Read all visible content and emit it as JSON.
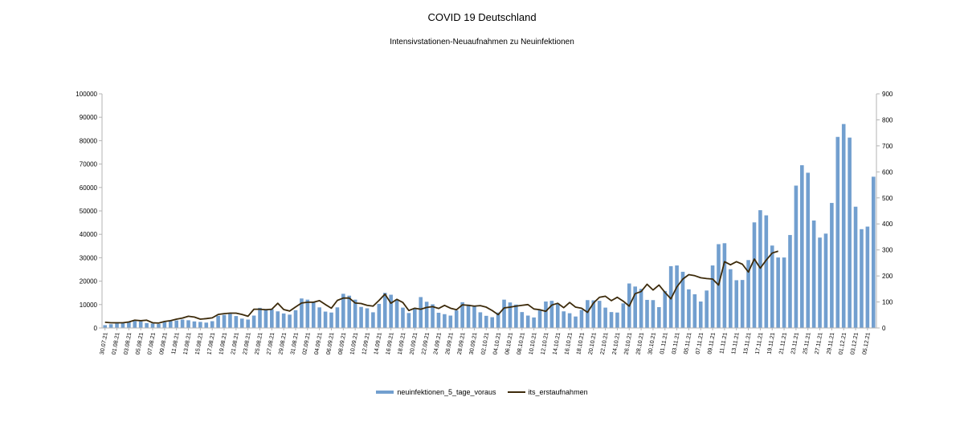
{
  "chart_data": {
    "type": "bar",
    "title": "COVID 19 Deutschland",
    "subtitle": "Intensivstationen-Neuaufnahmen zu Neuinfektionen",
    "xlabel": "",
    "ylabel": "",
    "ylim": [
      0,
      100000
    ],
    "y2lim": [
      0,
      900
    ],
    "yticks": [
      0,
      10000,
      20000,
      30000,
      40000,
      50000,
      60000,
      70000,
      80000,
      90000,
      100000
    ],
    "y2ticks": [
      0,
      100,
      200,
      300,
      400,
      500,
      600,
      700,
      800,
      900
    ],
    "grid": false,
    "legend_position": "bottom",
    "x_tick_labels": [
      "30.07.21",
      "01.08.21",
      "03.08.21",
      "05.08.21",
      "07.08.21",
      "09.08.21",
      "11.08.21",
      "13.08.21",
      "15.08.21",
      "17.08.21",
      "19.08.21",
      "21.08.21",
      "23.08.21",
      "25.08.21",
      "27.08.21",
      "29.08.21",
      "31.08.21",
      "02.09.21",
      "04.09.21",
      "06.09.21",
      "08.09.21",
      "10.09.21",
      "12.09.21",
      "14.09.21",
      "16.09.21",
      "18.09.21",
      "20.09.21",
      "22.09.21",
      "24.09.21",
      "26.09.21",
      "28.09.21",
      "30.09.21",
      "02.10.21",
      "04.10.21",
      "06.10.21",
      "08.10.21",
      "10.10.21",
      "12.10.21",
      "14.10.21",
      "16.10.21",
      "18.10.21",
      "20.10.21",
      "22.10.21",
      "24.10.21",
      "26.10.21",
      "28.10.21",
      "30.10.21",
      "01.11.21",
      "03.11.21",
      "05.11.21",
      "07.11.21",
      "09.11.21",
      "11.11.21",
      "13.11.21",
      "15.11.21",
      "17.11.21",
      "19.11.21",
      "21.11.21",
      "23.11.21",
      "25.11.21",
      "27.11.21",
      "29.11.21",
      "01.12.21",
      "03.12.21",
      "05.12.21"
    ],
    "x_start": "30.07.21",
    "series": [
      {
        "name": "neuinfektionen_5_tage_voraus",
        "kind": "bar",
        "axis": "left",
        "color": "#729fcf",
        "values": [
          1200,
          1600,
          2000,
          2300,
          2700,
          3000,
          2800,
          2100,
          1900,
          1700,
          2500,
          2900,
          3200,
          3600,
          3300,
          2800,
          2600,
          2300,
          2900,
          5200,
          5600,
          6000,
          5100,
          4000,
          3600,
          5300,
          8600,
          8100,
          8000,
          7100,
          6200,
          5700,
          7600,
          12600,
          12100,
          11200,
          8800,
          7000,
          6600,
          8800,
          14600,
          13800,
          12100,
          9000,
          8400,
          6700,
          10300,
          15000,
          14200,
          12200,
          8700,
          6400,
          8400,
          13200,
          11200,
          10100,
          6500,
          5900,
          5300,
          7500,
          11000,
          10000,
          9500,
          6700,
          5200,
          4600,
          6600,
          12100,
          10900,
          10000,
          6800,
          5300,
          4500,
          7800,
          11300,
          11600,
          10500,
          7100,
          6300,
          4900,
          7700,
          11900,
          11800,
          11600,
          8700,
          6800,
          6600,
          10500,
          19000,
          17700,
          16700,
          12000,
          11900,
          8900,
          15800,
          26400,
          26700,
          24000,
          16500,
          14400,
          11300,
          16000,
          26700,
          35800,
          36200,
          25100,
          20400,
          20500,
          29000,
          45100,
          50300,
          48100,
          35200,
          30100,
          30100,
          39700,
          60800,
          69500,
          66300,
          45900,
          38600,
          40300,
          53400,
          81600,
          87100,
          81300,
          51800,
          42200,
          43300,
          64600
        ]
      },
      {
        "name": "its_erstaufnahmen",
        "kind": "line",
        "axis": "right",
        "color": "#3d2b0b",
        "values": [
          22,
          20,
          20,
          20,
          23,
          30,
          28,
          30,
          20,
          19,
          25,
          28,
          34,
          38,
          45,
          42,
          34,
          36,
          39,
          52,
          55,
          57,
          57,
          52,
          45,
          72,
          72,
          70,
          72,
          95,
          71,
          65,
          81,
          96,
          99,
          99,
          105,
          90,
          76,
          106,
          115,
          115,
          96,
          94,
          87,
          84,
          106,
          130,
          95,
          110,
          98,
          67,
          76,
          72,
          79,
          82,
          75,
          87,
          76,
          70,
          89,
          87,
          84,
          86,
          80,
          67,
          51,
          77,
          80,
          84,
          87,
          90,
          73,
          70,
          64,
          88,
          95,
          78,
          98,
          80,
          76,
          60,
          96,
          118,
          122,
          105,
          118,
          103,
          84,
          132,
          140,
          168,
          146,
          165,
          137,
          112,
          158,
          188,
          205,
          201,
          193,
          190,
          188,
          165,
          255,
          243,
          255,
          245,
          215,
          265,
          230,
          261,
          288,
          295
        ]
      }
    ]
  }
}
